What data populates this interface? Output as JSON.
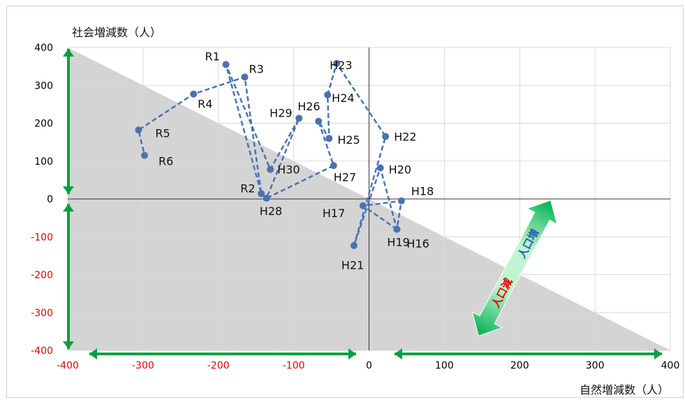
{
  "chart_data": {
    "type": "scatter",
    "xlabel": "自然増減数（人）",
    "ylabel": "社会増減数（人）",
    "xlim": [
      -400,
      400
    ],
    "ylim": [
      -400,
      400
    ],
    "x_ticks": [
      -400,
      -300,
      -200,
      -100,
      0,
      100,
      200,
      300,
      400
    ],
    "y_ticks": [
      400,
      300,
      200,
      100,
      0,
      -100,
      -200,
      -300,
      -400
    ],
    "tick_colors": {
      "negative": "#e60000",
      "nonnegative": "#000000"
    },
    "grid": true,
    "shaded_region": "population-decrease side below the diagonal line x + y = 0",
    "series": [
      {
        "color": "#4a72b0",
        "line_style": "dashed",
        "points": [
          {
            "label": "H16",
            "x": 37,
            "y": -80
          },
          {
            "label": "H17",
            "x": -8,
            "y": -18
          },
          {
            "label": "H18",
            "x": 43,
            "y": -5
          },
          {
            "label": "H19",
            "x": 37,
            "y": -80
          },
          {
            "label": "H20",
            "x": 15,
            "y": 82
          },
          {
            "label": "H21",
            "x": -20,
            "y": -123
          },
          {
            "label": "H22",
            "x": 22,
            "y": 165
          },
          {
            "label": "H23",
            "x": -43,
            "y": 358
          },
          {
            "label": "H24",
            "x": -55,
            "y": 275
          },
          {
            "label": "H25",
            "x": -53,
            "y": 160
          },
          {
            "label": "H26",
            "x": -67,
            "y": 205
          },
          {
            "label": "H27",
            "x": -47,
            "y": 88
          },
          {
            "label": "H28",
            "x": -136,
            "y": 2
          },
          {
            "label": "H29",
            "x": -93,
            "y": 213
          },
          {
            "label": "H30",
            "x": -131,
            "y": 78
          },
          {
            "label": "R1",
            "x": -190,
            "y": 355
          },
          {
            "label": "R2",
            "x": -143,
            "y": 14
          },
          {
            "label": "R3",
            "x": -165,
            "y": 322
          },
          {
            "label": "R4",
            "x": -233,
            "y": 277
          },
          {
            "label": "R5",
            "x": -306,
            "y": 182
          },
          {
            "label": "R6",
            "x": -298,
            "y": 115
          }
        ]
      }
    ],
    "annotations": [
      {
        "text": "人口増",
        "color": "#2a5aa8"
      },
      {
        "text": "人口減",
        "color": "#e60000"
      }
    ],
    "colors": {
      "shade": "#d4d4d4",
      "axis_arrow": "#00a040",
      "diag_arrow_light": "#b8f0cc",
      "diag_arrow_dark": "#00b050",
      "grid": "#d9d9d9"
    }
  }
}
